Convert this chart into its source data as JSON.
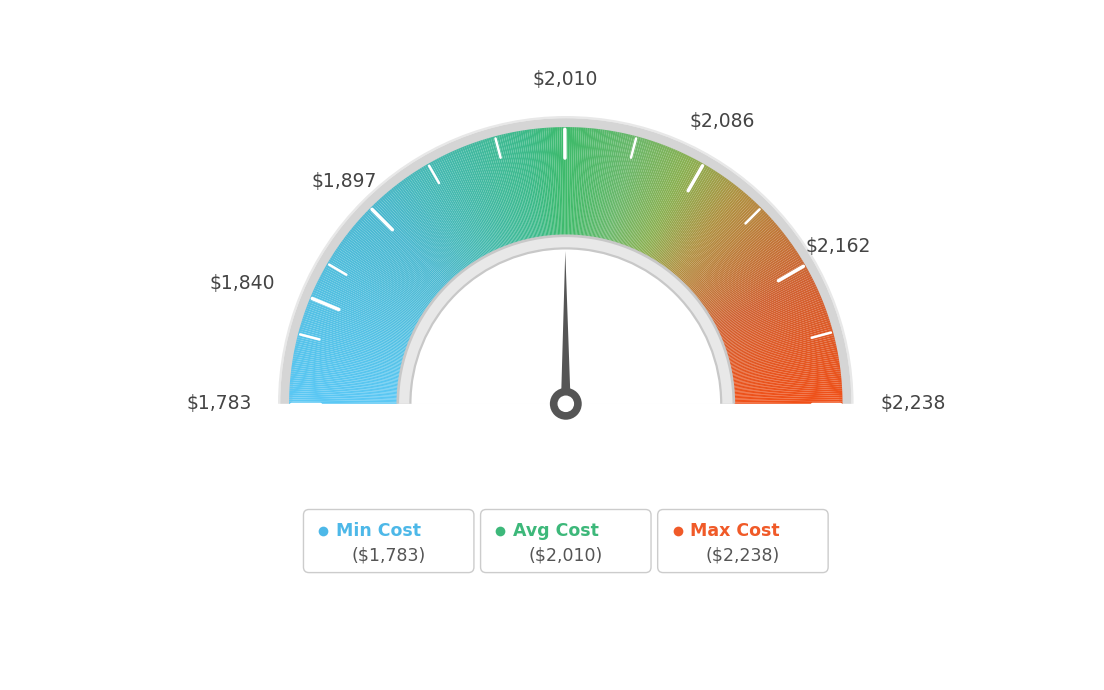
{
  "min_val": 1783,
  "avg_val": 2010,
  "max_val": 2238,
  "tick_labels": [
    "$1,783",
    "$1,840",
    "$1,897",
    "$2,010",
    "$2,086",
    "$2,162",
    "$2,238"
  ],
  "tick_values": [
    1783,
    1840,
    1897,
    2010,
    2086,
    2162,
    2238
  ],
  "all_tick_values": [
    1783,
    1820,
    1840,
    1860,
    1897,
    1935,
    1973,
    2010,
    2048,
    2086,
    2124,
    2162,
    2200,
    2238
  ],
  "legend_items": [
    {
      "label": "Min Cost",
      "value": "($1,783)",
      "color": "#4db8e8"
    },
    {
      "label": "Avg Cost",
      "value": "($2,010)",
      "color": "#3db87a"
    },
    {
      "label": "Max Cost",
      "value": "($2,238)",
      "color": "#f05a28"
    }
  ],
  "background_color": "#ffffff",
  "color_stops": [
    [
      0.0,
      "#5bc8f5"
    ],
    [
      0.25,
      "#4ab8d0"
    ],
    [
      0.45,
      "#3dba8a"
    ],
    [
      0.5,
      "#3dba6a"
    ],
    [
      0.58,
      "#6ab86a"
    ],
    [
      0.65,
      "#8ab050"
    ],
    [
      0.72,
      "#b09040"
    ],
    [
      0.78,
      "#c07838"
    ],
    [
      0.85,
      "#d06030"
    ],
    [
      1.0,
      "#f05018"
    ]
  ]
}
